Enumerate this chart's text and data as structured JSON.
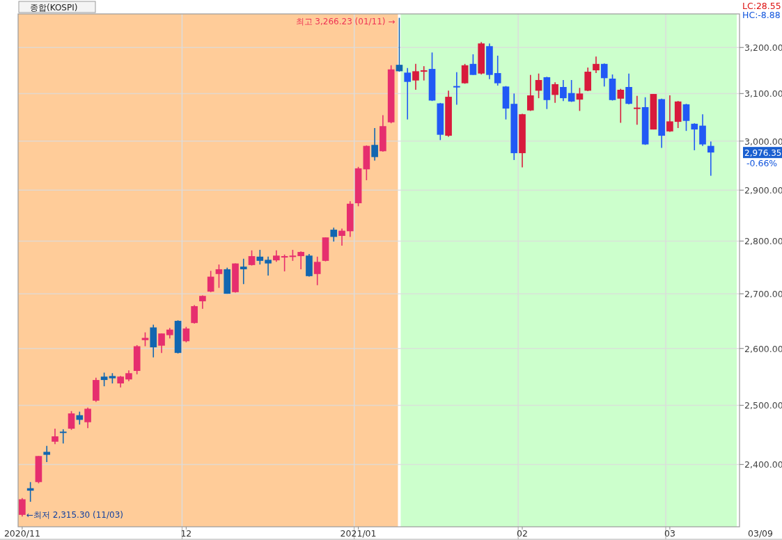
{
  "chart_data": {
    "type": "candlestick",
    "title": "종합(KOSPI)",
    "categories": [
      "2020/11",
      null,
      null,
      null,
      null,
      null,
      null,
      null,
      null,
      null,
      null,
      null,
      null,
      null,
      null,
      null,
      null,
      null,
      null,
      null,
      "12",
      null,
      null,
      null,
      null,
      null,
      null,
      null,
      null,
      null,
      null,
      null,
      null,
      null,
      null,
      null,
      null,
      null,
      null,
      null,
      null,
      "2021/01",
      null,
      null,
      null,
      null,
      null,
      null,
      null,
      null,
      null,
      null,
      null,
      null,
      null,
      null,
      null,
      null,
      null,
      null,
      null,
      "02",
      null,
      null,
      null,
      null,
      null,
      null,
      null,
      null,
      null,
      null,
      null,
      null,
      null,
      null,
      null,
      null,
      null,
      "03",
      null,
      null,
      null,
      null,
      null,
      null,
      null,
      null
    ],
    "ohlc": [
      [
        2318,
        2345,
        2315.3,
        2343
      ],
      [
        2361,
        2371,
        2339,
        2357
      ],
      [
        2371,
        2414,
        2369,
        2414
      ],
      [
        2421,
        2431,
        2404,
        2416
      ],
      [
        2438,
        2460,
        2434,
        2447
      ],
      [
        2455,
        2459,
        2435,
        2453
      ],
      [
        2460,
        2490,
        2458,
        2486
      ],
      [
        2483,
        2489,
        2467,
        2475
      ],
      [
        2471,
        2496,
        2461,
        2494
      ],
      [
        2508,
        2548,
        2506,
        2544
      ],
      [
        2550,
        2557,
        2533,
        2544
      ],
      [
        2551,
        2556,
        2538,
        2547
      ],
      [
        2538,
        2551,
        2531,
        2550
      ],
      [
        2545,
        2561,
        2542,
        2556
      ],
      [
        2560,
        2606,
        2554,
        2604
      ],
      [
        2615,
        2629,
        2604,
        2619
      ],
      [
        2638,
        2643,
        2584,
        2602
      ],
      [
        2605,
        2627,
        2592,
        2627
      ],
      [
        2624,
        2637,
        2618,
        2634
      ],
      [
        2650,
        2651,
        2591,
        2592
      ],
      [
        2613,
        2639,
        2611,
        2636
      ],
      [
        2646,
        2679,
        2645,
        2677
      ],
      [
        2686,
        2697,
        2672,
        2696
      ],
      [
        2704,
        2743,
        2703,
        2732
      ],
      [
        2737,
        2755,
        2711,
        2746
      ],
      [
        2746,
        2749,
        2700,
        2700
      ],
      [
        2703,
        2757,
        2702,
        2757
      ],
      [
        2751,
        2766,
        2718,
        2746
      ],
      [
        2754,
        2782,
        2753,
        2771
      ],
      [
        2770,
        2783,
        2755,
        2762
      ],
      [
        2764,
        2770,
        2734,
        2757
      ],
      [
        2763,
        2782,
        2760,
        2772
      ],
      [
        2770,
        2774,
        2742,
        2771
      ],
      [
        2770,
        2783,
        2762,
        2772
      ],
      [
        2771,
        2780,
        2746,
        2779
      ],
      [
        2772,
        2775,
        2732,
        2733
      ],
      [
        2737,
        2770,
        2716,
        2760
      ],
      [
        2762,
        2807,
        2761,
        2807
      ],
      [
        2822,
        2826,
        2799,
        2808
      ],
      [
        2810,
        2824,
        2791,
        2820
      ],
      [
        2819,
        2878,
        2808,
        2873
      ],
      [
        2874,
        2947,
        2868,
        2944
      ],
      [
        2942,
        2991,
        2920,
        2990
      ],
      [
        2992,
        3027,
        2960,
        2967
      ],
      [
        2979,
        3054,
        2978,
        3031
      ],
      [
        3039,
        3161,
        3037,
        3152
      ],
      [
        3162,
        3266.23,
        3147,
        3148
      ],
      [
        3145,
        3155,
        3045,
        3125
      ],
      [
        3128,
        3164,
        3108,
        3148
      ],
      [
        3148,
        3159,
        3128,
        3150
      ],
      [
        3153,
        3189,
        3084,
        3085
      ],
      [
        3079,
        3080,
        3002,
        3013
      ],
      [
        3011,
        3106,
        3009,
        3093
      ],
      [
        3116,
        3146,
        3076,
        3113
      ],
      [
        3122,
        3164,
        3121,
        3161
      ],
      [
        3164,
        3185,
        3140,
        3140
      ],
      [
        3143,
        3212,
        3141,
        3209
      ],
      [
        3203,
        3209,
        3131,
        3140
      ],
      [
        3144,
        3182,
        3117,
        3122
      ],
      [
        3115,
        3116,
        3045,
        3068
      ],
      [
        3078,
        3100,
        2961,
        2975
      ],
      [
        2975,
        3057,
        2946,
        3056
      ],
      [
        3064,
        3140,
        3063,
        3096
      ],
      [
        3106,
        3143,
        3090,
        3129
      ],
      [
        3135,
        3136,
        3067,
        3086
      ],
      [
        3097,
        3124,
        3080,
        3120
      ],
      [
        3114,
        3129,
        3084,
        3090
      ],
      [
        3101,
        3129,
        3082,
        3083
      ],
      [
        3087,
        3112,
        3063,
        3100
      ],
      [
        3106,
        3156,
        3105,
        3147
      ],
      [
        3150,
        3180,
        3144,
        3164
      ],
      [
        3164,
        3165,
        3115,
        3133
      ],
      [
        3132,
        3141,
        3085,
        3086
      ],
      [
        3089,
        3110,
        3038,
        3108
      ],
      [
        3114,
        3143,
        3077,
        3078
      ],
      [
        3068,
        3095,
        3034,
        3070
      ],
      [
        3071,
        3092,
        2992,
        2993
      ],
      [
        3024,
        3099,
        3024,
        3099
      ],
      [
        3088,
        3089,
        2986,
        3011
      ],
      [
        3020,
        3096,
        3019,
        3041
      ],
      [
        3040,
        3084,
        3027,
        3083
      ],
      [
        3077,
        3078,
        3021,
        3042
      ],
      [
        3036,
        3037,
        2981,
        3024
      ],
      [
        3032,
        3056,
        2990,
        2993
      ],
      [
        2990,
        2999,
        2929,
        2976.35
      ],
      null,
      null,
      null
    ],
    "colors": [
      "#e62e6e",
      "#1166b0",
      "#e62e6e",
      "#1166b0",
      "#e62e6e",
      "#1166b0",
      "#e62e6e",
      "#1166b0",
      "#e62e6e",
      "#e62e6e",
      "#1166b0",
      "#1166b0",
      "#e62e6e",
      "#e62e6e",
      "#e62e6e",
      "#e62e6e",
      "#1166b0",
      "#e62e6e",
      "#e62e6e",
      "#1166b0",
      "#e62e6e",
      "#e62e6e",
      "#e62e6e",
      "#e62e6e",
      "#e62e6e",
      "#1166b0",
      "#e62e6e",
      "#1166b0",
      "#e62e6e",
      "#1166b0",
      "#1166b0",
      "#e62e6e",
      "#e62e6e",
      "#e62e6e",
      "#e62e6e",
      "#1166b0",
      "#e62e6e",
      "#e62e6e",
      "#1166b0",
      "#e62e6e",
      "#e62e6e",
      "#e62e6e",
      "#e62e6e",
      "#1166b0",
      "#e62e6e",
      "#e62e6e",
      "#1166b0",
      "#2159f5",
      "#d81b3c",
      "#d81b3c",
      "#2159f5",
      "#2159f5",
      "#d81b3c",
      "#2159f5",
      "#d81b3c",
      "#2159f5",
      "#d81b3c",
      "#2159f5",
      "#2159f5",
      "#2159f5",
      "#2159f5",
      "#d81b3c",
      "#d81b3c",
      "#d81b3c",
      "#2159f5",
      "#d81b3c",
      "#2159f5",
      "#2159f5",
      "#d81b3c",
      "#d81b3c",
      "#d81b3c",
      "#2159f5",
      "#2159f5",
      "#d81b3c",
      "#2159f5",
      "#d81b3c",
      "#2159f5",
      "#d81b3c",
      "#2159f5",
      "#d81b3c",
      "#d81b3c",
      "#2159f5",
      "#2159f5",
      "#2159f5",
      "#2159f5",
      null,
      null,
      null
    ],
    "log": true,
    "ylim": [
      2299,
      3275
    ],
    "yticks": [
      {
        "value": 2400,
        "label": "2,400.00"
      },
      {
        "value": 2500,
        "label": "2,500.00"
      },
      {
        "value": 2600,
        "label": "2,600.00"
      },
      {
        "value": 2700,
        "label": "2,700.00"
      },
      {
        "value": 2800,
        "label": "2,800.00"
      },
      {
        "value": 2900,
        "label": "2,900.00"
      },
      {
        "value": 3000,
        "label": "3,000.00"
      },
      {
        "value": 3100,
        "label": "3,100.00"
      },
      {
        "value": 3200,
        "label": "3,200.00"
      }
    ],
    "grid": true,
    "annotations": [
      "최고 3,266.23 (01/11) →",
      "←최저 2,315.30 (11/03)",
      "LC:28.55",
      "HC:-8.88",
      "2,976.35",
      "-0.66%",
      "03/09"
    ]
  }
}
